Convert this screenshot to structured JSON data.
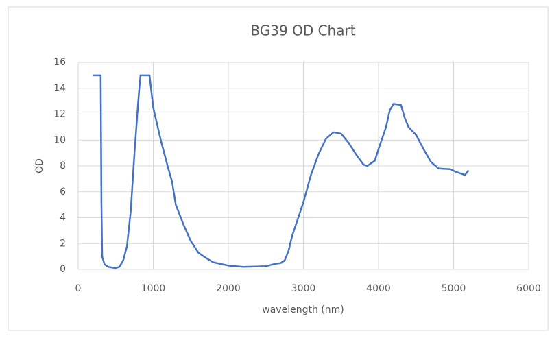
{
  "chart_data": {
    "type": "line",
    "title": "BG39 OD Chart",
    "x_label": "wavelength (nm)",
    "y_label": "OD",
    "x": [
      200,
      300,
      310,
      320,
      350,
      400,
      500,
      550,
      600,
      650,
      700,
      750,
      800,
      830,
      950,
      1000,
      1100,
      1200,
      1250,
      1300,
      1400,
      1500,
      1600,
      1700,
      1800,
      2000,
      2200,
      2500,
      2600,
      2700,
      2750,
      2800,
      2850,
      3000,
      3100,
      3200,
      3300,
      3400,
      3500,
      3600,
      3700,
      3800,
      3850,
      3950,
      4000,
      4100,
      4150,
      4200,
      4300,
      4350,
      4400,
      4500,
      4600,
      4700,
      4800,
      4950,
      5050,
      5150,
      5200
    ],
    "series": [
      {
        "name": "OD",
        "color": "#4472c4",
        "values": [
          15,
          15,
          5,
          1,
          0.4,
          0.2,
          0.1,
          0.2,
          0.7,
          1.8,
          4.5,
          9,
          13,
          15,
          15,
          12.5,
          10,
          7.8,
          6.8,
          5,
          3.5,
          2.2,
          1.3,
          0.9,
          0.55,
          0.3,
          0.2,
          0.25,
          0.4,
          0.5,
          0.7,
          1.4,
          2.6,
          5.2,
          7.3,
          8.9,
          10.1,
          10.6,
          10.5,
          9.8,
          8.9,
          8.1,
          8.0,
          8.4,
          9.3,
          11,
          12.3,
          12.8,
          12.7,
          11.7,
          11.0,
          10.4,
          9.3,
          8.3,
          7.8,
          7.75,
          7.5,
          7.3,
          7.65
        ]
      }
    ],
    "xlim": [
      0,
      6000
    ],
    "xticks": [
      0,
      1000,
      2000,
      3000,
      4000,
      5000,
      6000
    ],
    "ylim": [
      0,
      16
    ],
    "yticks": [
      0,
      2,
      4,
      6,
      8,
      10,
      12,
      14,
      16
    ],
    "grid": true
  }
}
